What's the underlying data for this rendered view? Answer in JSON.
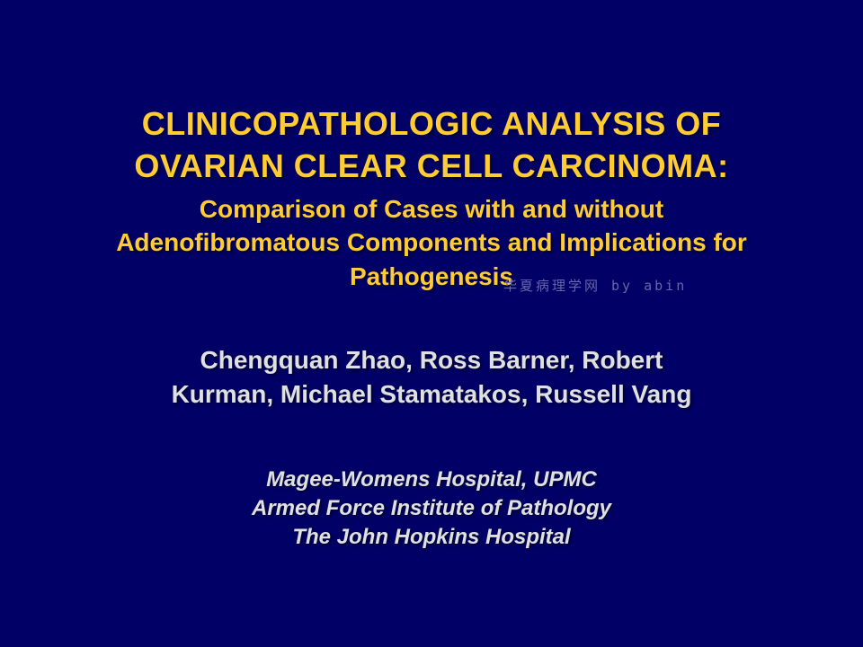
{
  "slide": {
    "title_line1": "CLINICOPATHOLOGIC ANALYSIS OF",
    "title_line2": "OVARIAN CLEAR CELL CARCINOMA:",
    "subtitle_line1": "Comparison of Cases with and without",
    "subtitle_line2": "Adenofibromatous Components and Implications for",
    "subtitle_line3": "Pathogenesis",
    "watermark": "华夏病理学网 by abin",
    "authors_line1": "Chengquan Zhao, Ross Barner, Robert",
    "authors_line2": "Kurman, Michael Stamatakos, Russell Vang",
    "affiliation_line1": "Magee-Womens Hospital, UPMC",
    "affiliation_line2": "Armed Force Institute of Pathology",
    "affiliation_line3": "The John Hopkins Hospital"
  },
  "styling": {
    "background_color": "#000066",
    "title_color": "#ffcc33",
    "body_text_color": "#e0e0e0",
    "watermark_color": "#6666aa",
    "title_fontsize": 36,
    "subtitle_fontsize": 28,
    "authors_fontsize": 28,
    "affiliations_fontsize": 24,
    "watermark_fontsize": 15,
    "font_family": "Arial"
  }
}
